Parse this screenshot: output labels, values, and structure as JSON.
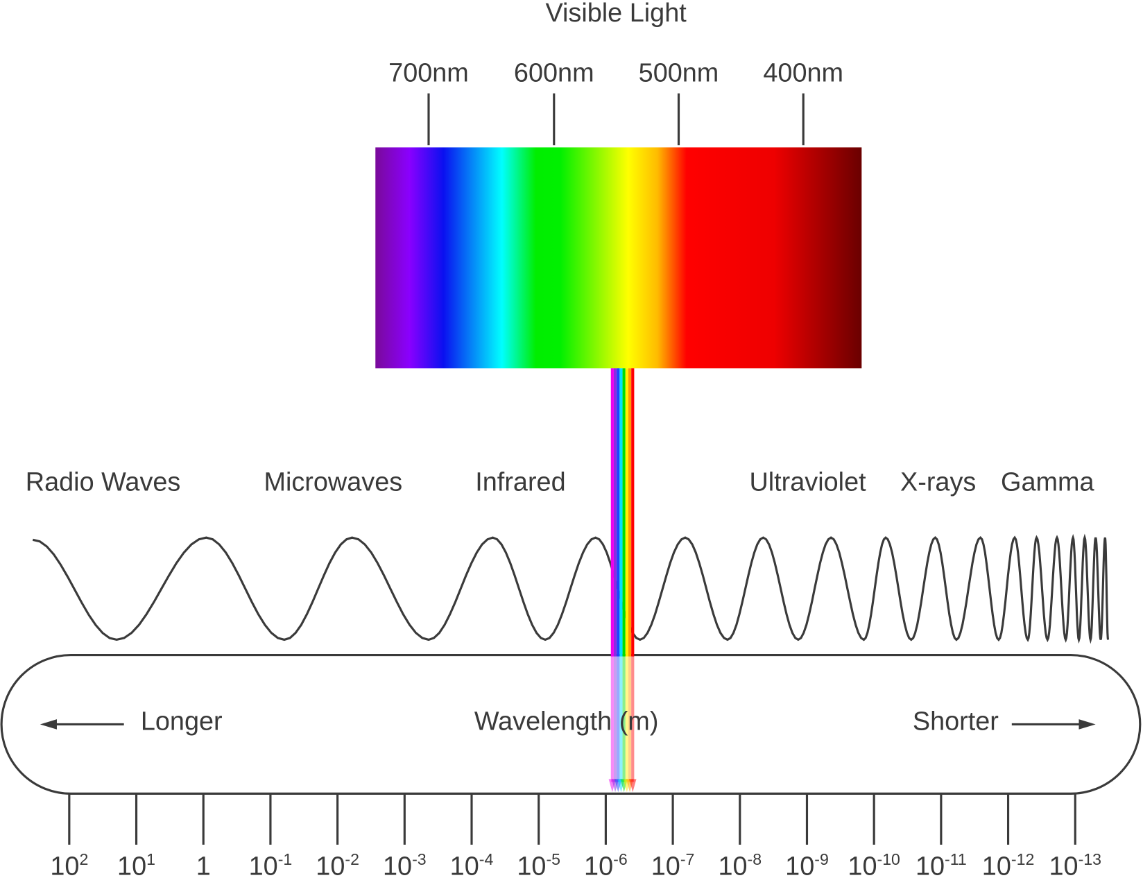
{
  "title": "Visible Light",
  "nm_labels": [
    "700nm",
    "600nm",
    "500nm",
    "400nm"
  ],
  "bands": [
    "Radio Waves",
    "Microwaves",
    "Infrared",
    "Ultraviolet",
    "X-rays",
    "Gamma"
  ],
  "axis": {
    "left": "Longer",
    "center": "Wavelength (m)",
    "right": "Shorter"
  },
  "ticks": [
    {
      "base": "10",
      "exponent": "2"
    },
    {
      "base": "10",
      "exponent": "1"
    },
    {
      "base": "1"
    },
    {
      "base": "10",
      "exponent": "-1"
    },
    {
      "base": "10",
      "exponent": "-2"
    },
    {
      "base": "10",
      "exponent": "-3"
    },
    {
      "base": "10",
      "exponent": "-4"
    },
    {
      "base": "10",
      "exponent": "-5"
    },
    {
      "base": "10",
      "exponent": "-6"
    },
    {
      "base": "10",
      "exponent": "-7"
    },
    {
      "base": "10",
      "exponent": "-8"
    },
    {
      "base": "10",
      "exponent": "-9"
    },
    {
      "base": "10",
      "exponent": "-10"
    },
    {
      "base": "10",
      "exponent": "-11"
    },
    {
      "base": "10",
      "exponent": "-12"
    },
    {
      "base": "10",
      "exponent": "-13"
    }
  ]
}
